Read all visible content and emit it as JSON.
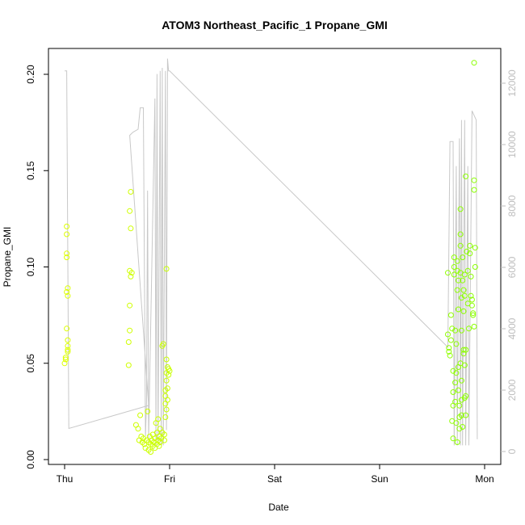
{
  "chart_data": {
    "type": "scatter",
    "title": "ATOM3 Northeast_Pacific_1 Propane_GMI",
    "xlabel": "Date",
    "ylabel": "Propane_GMI",
    "x_unit": "days",
    "xlim": [
      0,
      4.0
    ],
    "ylim": [
      0,
      0.21
    ],
    "x_ticks": [
      {
        "value": 0,
        "label": "Thu"
      },
      {
        "value": 1,
        "label": "Fri"
      },
      {
        "value": 2,
        "label": "Sat"
      },
      {
        "value": 3,
        "label": "Sun"
      },
      {
        "value": 4,
        "label": "Mon"
      }
    ],
    "y_ticks": [
      0.0,
      0.05,
      0.1,
      0.15,
      0.2
    ],
    "y_tick_labels": [
      "0.00",
      "0.05",
      "0.10",
      "0.15",
      "0.20"
    ],
    "y2lim": [
      -200,
      13000
    ],
    "y2_ticks": [
      0,
      2000,
      4000,
      6000,
      8000,
      10000,
      12000
    ],
    "y2_tick_labels": [
      "0",
      "2000",
      "4000",
      "6000",
      "8000",
      "10000",
      "12000"
    ],
    "colors": {
      "scatter_low": "#ddff00",
      "scatter_high": "#88ff00",
      "altitude_line": "#c8c8c8",
      "axis": "#000000",
      "right_axis": "#bdbdbd"
    },
    "points": [
      {
        "x": 0.0,
        "y": 0.05
      },
      {
        "x": 0.01,
        "y": 0.052
      },
      {
        "x": 0.01,
        "y": 0.053
      },
      {
        "x": 0.02,
        "y": 0.121
      },
      {
        "x": 0.02,
        "y": 0.117
      },
      {
        "x": 0.02,
        "y": 0.107
      },
      {
        "x": 0.02,
        "y": 0.105
      },
      {
        "x": 0.02,
        "y": 0.087
      },
      {
        "x": 0.03,
        "y": 0.089
      },
      {
        "x": 0.03,
        "y": 0.085
      },
      {
        "x": 0.02,
        "y": 0.068
      },
      {
        "x": 0.03,
        "y": 0.062
      },
      {
        "x": 0.03,
        "y": 0.059
      },
      {
        "x": 0.03,
        "y": 0.057
      },
      {
        "x": 0.03,
        "y": 0.056
      },
      {
        "x": 0.61,
        "y": 0.049
      },
      {
        "x": 0.61,
        "y": 0.061
      },
      {
        "x": 0.62,
        "y": 0.067
      },
      {
        "x": 0.62,
        "y": 0.08
      },
      {
        "x": 0.62,
        "y": 0.098
      },
      {
        "x": 0.63,
        "y": 0.095
      },
      {
        "x": 0.64,
        "y": 0.097
      },
      {
        "x": 0.62,
        "y": 0.129
      },
      {
        "x": 0.63,
        "y": 0.139
      },
      {
        "x": 0.63,
        "y": 0.12
      },
      {
        "x": 0.68,
        "y": 0.018
      },
      {
        "x": 0.7,
        "y": 0.016
      },
      {
        "x": 0.72,
        "y": 0.023
      },
      {
        "x": 0.71,
        "y": 0.01
      },
      {
        "x": 0.73,
        "y": 0.012
      },
      {
        "x": 0.74,
        "y": 0.009
      },
      {
        "x": 0.75,
        "y": 0.011
      },
      {
        "x": 0.76,
        "y": 0.008
      },
      {
        "x": 0.77,
        "y": 0.006
      },
      {
        "x": 0.78,
        "y": 0.01
      },
      {
        "x": 0.79,
        "y": 0.025
      },
      {
        "x": 0.8,
        "y": 0.009
      },
      {
        "x": 0.8,
        "y": 0.005
      },
      {
        "x": 0.81,
        "y": 0.012
      },
      {
        "x": 0.82,
        "y": 0.008
      },
      {
        "x": 0.82,
        "y": 0.004
      },
      {
        "x": 0.83,
        "y": 0.01
      },
      {
        "x": 0.84,
        "y": 0.013
      },
      {
        "x": 0.84,
        "y": 0.007
      },
      {
        "x": 0.85,
        "y": 0.009
      },
      {
        "x": 0.86,
        "y": 0.011
      },
      {
        "x": 0.86,
        "y": 0.006
      },
      {
        "x": 0.87,
        "y": 0.019
      },
      {
        "x": 0.88,
        "y": 0.014
      },
      {
        "x": 0.88,
        "y": 0.008
      },
      {
        "x": 0.89,
        "y": 0.021
      },
      {
        "x": 0.89,
        "y": 0.01
      },
      {
        "x": 0.9,
        "y": 0.012
      },
      {
        "x": 0.9,
        "y": 0.007
      },
      {
        "x": 0.91,
        "y": 0.016
      },
      {
        "x": 0.91,
        "y": 0.009
      },
      {
        "x": 0.92,
        "y": 0.011
      },
      {
        "x": 0.93,
        "y": 0.014
      },
      {
        "x": 0.93,
        "y": 0.059
      },
      {
        "x": 0.94,
        "y": 0.06
      },
      {
        "x": 0.95,
        "y": 0.01
      },
      {
        "x": 0.95,
        "y": 0.013
      },
      {
        "x": 0.96,
        "y": 0.033
      },
      {
        "x": 0.96,
        "y": 0.036
      },
      {
        "x": 0.96,
        "y": 0.029
      },
      {
        "x": 0.97,
        "y": 0.099
      },
      {
        "x": 0.97,
        "y": 0.052
      },
      {
        "x": 0.97,
        "y": 0.045
      },
      {
        "x": 0.97,
        "y": 0.041
      },
      {
        "x": 0.98,
        "y": 0.048
      },
      {
        "x": 0.98,
        "y": 0.037
      },
      {
        "x": 0.98,
        "y": 0.031
      },
      {
        "x": 0.99,
        "y": 0.047
      },
      {
        "x": 0.99,
        "y": 0.044
      },
      {
        "x": 1.0,
        "y": 0.046
      },
      {
        "x": 0.96,
        "y": 0.022
      },
      {
        "x": 0.97,
        "y": 0.026
      },
      {
        "x": 3.65,
        "y": 0.065
      },
      {
        "x": 3.65,
        "y": 0.097
      },
      {
        "x": 3.66,
        "y": 0.056
      },
      {
        "x": 3.66,
        "y": 0.058
      },
      {
        "x": 3.67,
        "y": 0.054
      },
      {
        "x": 3.68,
        "y": 0.062
      },
      {
        "x": 3.68,
        "y": 0.075
      },
      {
        "x": 3.69,
        "y": 0.068
      },
      {
        "x": 3.69,
        "y": 0.02
      },
      {
        "x": 3.7,
        "y": 0.028
      },
      {
        "x": 3.7,
        "y": 0.035
      },
      {
        "x": 3.7,
        "y": 0.046
      },
      {
        "x": 3.71,
        "y": 0.1
      },
      {
        "x": 3.71,
        "y": 0.105
      },
      {
        "x": 3.71,
        "y": 0.096
      },
      {
        "x": 3.72,
        "y": 0.067
      },
      {
        "x": 3.72,
        "y": 0.04
      },
      {
        "x": 3.72,
        "y": 0.03
      },
      {
        "x": 3.73,
        "y": 0.019
      },
      {
        "x": 3.73,
        "y": 0.06
      },
      {
        "x": 3.74,
        "y": 0.088
      },
      {
        "x": 3.74,
        "y": 0.098
      },
      {
        "x": 3.74,
        "y": 0.103
      },
      {
        "x": 3.75,
        "y": 0.093
      },
      {
        "x": 3.75,
        "y": 0.078
      },
      {
        "x": 3.75,
        "y": 0.048
      },
      {
        "x": 3.75,
        "y": 0.036
      },
      {
        "x": 3.76,
        "y": 0.028
      },
      {
        "x": 3.76,
        "y": 0.022
      },
      {
        "x": 3.76,
        "y": 0.016
      },
      {
        "x": 3.77,
        "y": 0.13
      },
      {
        "x": 3.77,
        "y": 0.117
      },
      {
        "x": 3.77,
        "y": 0.111
      },
      {
        "x": 3.77,
        "y": 0.097
      },
      {
        "x": 3.78,
        "y": 0.084
      },
      {
        "x": 3.78,
        "y": 0.067
      },
      {
        "x": 3.78,
        "y": 0.041
      },
      {
        "x": 3.78,
        "y": 0.031
      },
      {
        "x": 3.78,
        "y": 0.023
      },
      {
        "x": 3.79,
        "y": 0.017
      },
      {
        "x": 3.79,
        "y": 0.105
      },
      {
        "x": 3.79,
        "y": 0.093
      },
      {
        "x": 3.8,
        "y": 0.088
      },
      {
        "x": 3.8,
        "y": 0.077
      },
      {
        "x": 3.8,
        "y": 0.057
      },
      {
        "x": 3.8,
        "y": 0.055
      },
      {
        "x": 3.81,
        "y": 0.049
      },
      {
        "x": 3.81,
        "y": 0.085
      },
      {
        "x": 3.81,
        "y": 0.096
      },
      {
        "x": 3.82,
        "y": 0.057
      },
      {
        "x": 3.82,
        "y": 0.033
      },
      {
        "x": 3.82,
        "y": 0.023
      },
      {
        "x": 3.82,
        "y": 0.147
      },
      {
        "x": 3.83,
        "y": 0.108
      },
      {
        "x": 3.84,
        "y": 0.098
      },
      {
        "x": 3.84,
        "y": 0.081
      },
      {
        "x": 3.85,
        "y": 0.068
      },
      {
        "x": 3.86,
        "y": 0.111
      },
      {
        "x": 3.86,
        "y": 0.107
      },
      {
        "x": 3.87,
        "y": 0.095
      },
      {
        "x": 3.87,
        "y": 0.085
      },
      {
        "x": 3.88,
        "y": 0.083
      },
      {
        "x": 3.88,
        "y": 0.08
      },
      {
        "x": 3.89,
        "y": 0.076
      },
      {
        "x": 3.89,
        "y": 0.075
      },
      {
        "x": 3.9,
        "y": 0.206
      },
      {
        "x": 3.9,
        "y": 0.145
      },
      {
        "x": 3.9,
        "y": 0.14
      },
      {
        "x": 3.91,
        "y": 0.11
      },
      {
        "x": 3.91,
        "y": 0.1
      },
      {
        "x": 3.9,
        "y": 0.069
      },
      {
        "x": 3.81,
        "y": 0.032
      },
      {
        "x": 3.77,
        "y": 0.05
      },
      {
        "x": 3.73,
        "y": 0.045
      },
      {
        "x": 3.7,
        "y": 0.011
      },
      {
        "x": 3.74,
        "y": 0.009
      }
    ],
    "altitude_line": [
      {
        "x": 0.0,
        "y2": 12400
      },
      {
        "x": 0.01,
        "y2": 12400
      },
      {
        "x": 0.02,
        "y2": 12400
      },
      {
        "x": 0.04,
        "y2": 750
      },
      {
        "x": 0.8,
        "y2": 1500
      },
      {
        "x": 0.8,
        "y2": 1500
      },
      {
        "x": 0.62,
        "y2": 10300
      },
      {
        "x": 0.65,
        "y2": 10400
      },
      {
        "x": 0.7,
        "y2": 10500
      },
      {
        "x": 0.72,
        "y2": 11200
      },
      {
        "x": 0.75,
        "y2": 11200
      },
      {
        "x": 0.77,
        "y2": 500
      },
      {
        "x": 0.78,
        "y2": 1600
      },
      {
        "x": 0.79,
        "y2": 8500
      },
      {
        "x": 0.8,
        "y2": 400
      },
      {
        "x": 0.86,
        "y2": 11500
      },
      {
        "x": 0.87,
        "y2": 200
      },
      {
        "x": 0.88,
        "y2": 12300
      },
      {
        "x": 0.89,
        "y2": 300
      },
      {
        "x": 0.91,
        "y2": 12400
      },
      {
        "x": 0.92,
        "y2": 200
      },
      {
        "x": 0.93,
        "y2": 12500
      },
      {
        "x": 0.94,
        "y2": 200
      },
      {
        "x": 0.96,
        "y2": 12400
      },
      {
        "x": 0.97,
        "y2": 700
      },
      {
        "x": 0.98,
        "y2": 12800
      },
      {
        "x": 0.99,
        "y2": 12400
      },
      {
        "x": 1.0,
        "y2": 12400
      },
      {
        "x": 3.65,
        "y2": 3400
      },
      {
        "x": 3.67,
        "y2": 10100
      },
      {
        "x": 3.7,
        "y2": 10100
      },
      {
        "x": 3.71,
        "y2": 200
      },
      {
        "x": 3.73,
        "y2": 9300
      },
      {
        "x": 3.74,
        "y2": 200
      },
      {
        "x": 3.76,
        "y2": 10200
      },
      {
        "x": 3.77,
        "y2": 200
      },
      {
        "x": 3.78,
        "y2": 10800
      },
      {
        "x": 3.79,
        "y2": 200
      },
      {
        "x": 3.81,
        "y2": 10800
      },
      {
        "x": 3.82,
        "y2": 200
      },
      {
        "x": 3.84,
        "y2": 9300
      },
      {
        "x": 3.85,
        "y2": 200
      },
      {
        "x": 3.88,
        "y2": 11100
      },
      {
        "x": 3.92,
        "y2": 10800
      },
      {
        "x": 3.93,
        "y2": 400
      }
    ]
  }
}
